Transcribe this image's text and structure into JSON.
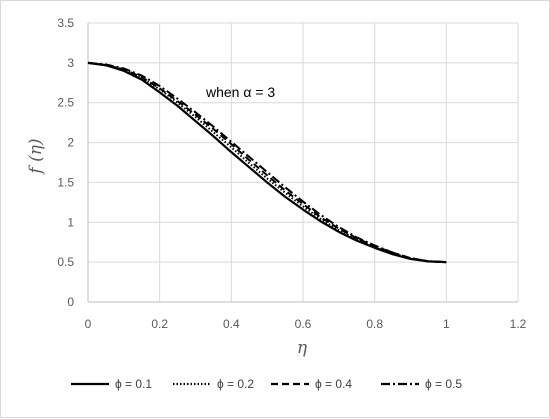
{
  "chart_data": {
    "type": "line",
    "title": "",
    "xlabel": "η",
    "ylabel": "f (η)",
    "annotation": "when α = 3",
    "xlim": [
      0,
      1.2
    ],
    "ylim": [
      0,
      3.5
    ],
    "xticks": [
      "0",
      "0.2",
      "0.4",
      "0.6",
      "0.8",
      "1",
      "1.2"
    ],
    "yticks": [
      "0",
      "0.5",
      "1",
      "1.5",
      "2",
      "2.5",
      "3",
      "3.5"
    ],
    "grid": true,
    "legend_position": "bottom",
    "series": [
      {
        "name": "ϕ = 0.1",
        "style": "solid",
        "color": "#000000",
        "x": [
          0,
          0.05,
          0.1,
          0.15,
          0.2,
          0.25,
          0.3,
          0.35,
          0.4,
          0.45,
          0.5,
          0.55,
          0.6,
          0.65,
          0.7,
          0.75,
          0.8,
          0.85,
          0.9,
          0.95,
          1.0
        ],
        "y": [
          3.0,
          2.97,
          2.9,
          2.79,
          2.63,
          2.46,
          2.27,
          2.08,
          1.88,
          1.69,
          1.5,
          1.32,
          1.16,
          1.01,
          0.88,
          0.77,
          0.68,
          0.6,
          0.54,
          0.51,
          0.5
        ]
      },
      {
        "name": "ϕ = 0.2",
        "style": "dotted",
        "color": "#000000",
        "x": [
          0,
          0.05,
          0.1,
          0.15,
          0.2,
          0.25,
          0.3,
          0.35,
          0.4,
          0.45,
          0.5,
          0.55,
          0.6,
          0.65,
          0.7,
          0.75,
          0.8,
          0.85,
          0.9,
          0.95,
          1.0
        ],
        "y": [
          3.0,
          2.97,
          2.92,
          2.81,
          2.67,
          2.5,
          2.32,
          2.13,
          1.94,
          1.74,
          1.55,
          1.37,
          1.2,
          1.04,
          0.9,
          0.79,
          0.69,
          0.61,
          0.55,
          0.51,
          0.5
        ]
      },
      {
        "name": "ϕ = 0.4",
        "style": "dashed",
        "color": "#000000",
        "x": [
          0,
          0.05,
          0.1,
          0.15,
          0.2,
          0.25,
          0.3,
          0.35,
          0.4,
          0.45,
          0.5,
          0.55,
          0.6,
          0.65,
          0.7,
          0.75,
          0.8,
          0.85,
          0.9,
          0.95,
          1.0
        ],
        "y": [
          3.0,
          2.97,
          2.92,
          2.82,
          2.68,
          2.52,
          2.35,
          2.17,
          1.98,
          1.78,
          1.59,
          1.4,
          1.23,
          1.06,
          0.92,
          0.8,
          0.7,
          0.62,
          0.55,
          0.51,
          0.5
        ]
      },
      {
        "name": "ϕ = 0.5",
        "style": "dashdot",
        "color": "#000000",
        "x": [
          0,
          0.05,
          0.1,
          0.15,
          0.2,
          0.25,
          0.3,
          0.35,
          0.4,
          0.45,
          0.5,
          0.55,
          0.6,
          0.65,
          0.7,
          0.75,
          0.8,
          0.85,
          0.9,
          0.95,
          1.0
        ],
        "y": [
          3.0,
          2.98,
          2.93,
          2.84,
          2.71,
          2.55,
          2.38,
          2.2,
          2.01,
          1.82,
          1.63,
          1.44,
          1.26,
          1.09,
          0.94,
          0.81,
          0.71,
          0.62,
          0.55,
          0.51,
          0.5
        ]
      }
    ]
  }
}
